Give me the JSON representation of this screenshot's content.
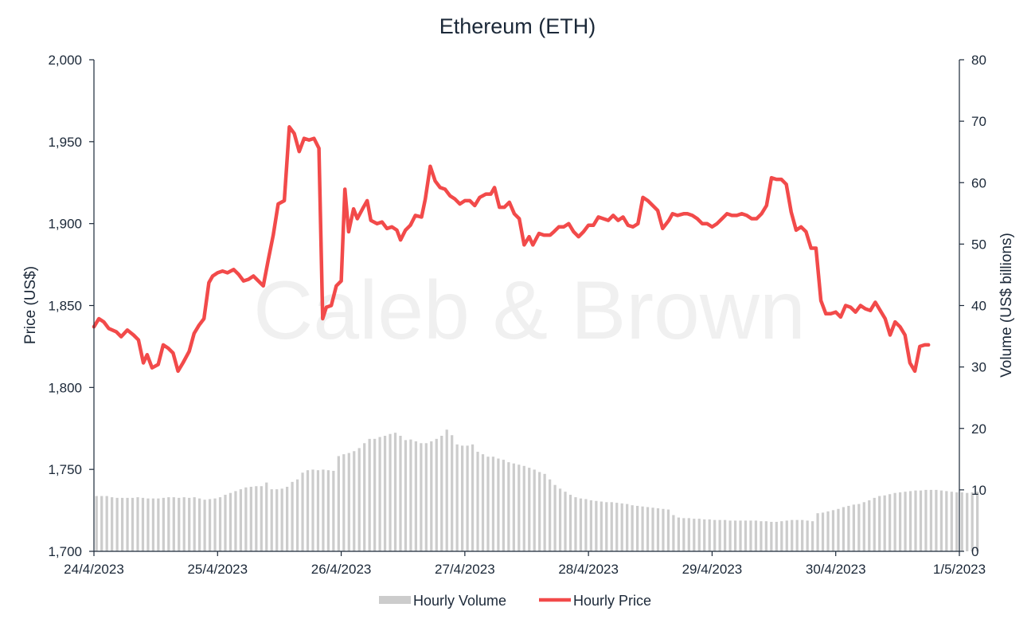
{
  "chart_data": {
    "type": "bar+line",
    "title": "Ethereum (ETH)",
    "watermark": "Caleb & Brown",
    "y_left": {
      "label": "Price (US$)",
      "range": [
        1700,
        2000
      ],
      "ticks": [
        "1,700",
        "1,750",
        "1,800",
        "1,850",
        "1,900",
        "1,950",
        "2,000"
      ],
      "tick_values": [
        1700,
        1750,
        1800,
        1850,
        1900,
        1950,
        2000
      ]
    },
    "y_right": {
      "label": "Volume (US$ billions)",
      "range": [
        0,
        80
      ],
      "ticks": [
        "0",
        "10",
        "20",
        "30",
        "40",
        "50",
        "60",
        "70",
        "80"
      ],
      "tick_values": [
        0,
        10,
        20,
        30,
        40,
        50,
        60,
        70,
        80
      ]
    },
    "x_axis": {
      "range_days": 7,
      "ticks": [
        "24/4/2023",
        "25/4/2023",
        "26/4/2023",
        "27/4/2023",
        "28/4/2023",
        "29/4/2023",
        "30/4/2023",
        "1/5/2023"
      ]
    },
    "grid": false,
    "legend": {
      "position": "bottom",
      "items": [
        {
          "label": "Hourly Volume",
          "color": "#cccccc",
          "kind": "bar"
        },
        {
          "label": "Hourly Price",
          "color": "#f24a4a",
          "kind": "line"
        }
      ]
    },
    "colors": {
      "price": "#f24a4a",
      "volume": "#cccccc",
      "text": "#1b2838"
    },
    "series": [
      {
        "name": "Hourly Price",
        "axis": "left",
        "points": [
          [
            0.0,
            1837
          ],
          [
            0.04,
            1842
          ],
          [
            0.08,
            1840
          ],
          [
            0.12,
            1836
          ],
          [
            0.18,
            1834
          ],
          [
            0.22,
            1831
          ],
          [
            0.27,
            1835
          ],
          [
            0.32,
            1832
          ],
          [
            0.36,
            1829
          ],
          [
            0.4,
            1815
          ],
          [
            0.43,
            1820
          ],
          [
            0.47,
            1812
          ],
          [
            0.52,
            1814
          ],
          [
            0.56,
            1826
          ],
          [
            0.6,
            1824
          ],
          [
            0.64,
            1821
          ],
          [
            0.68,
            1810
          ],
          [
            0.72,
            1815
          ],
          [
            0.77,
            1822
          ],
          [
            0.81,
            1833
          ],
          [
            0.85,
            1838
          ],
          [
            0.89,
            1842
          ],
          [
            0.93,
            1864
          ],
          [
            0.96,
            1868
          ],
          [
            1.0,
            1870
          ],
          [
            1.04,
            1871
          ],
          [
            1.08,
            1870
          ],
          [
            1.13,
            1872
          ],
          [
            1.17,
            1869
          ],
          [
            1.21,
            1865
          ],
          [
            1.25,
            1866
          ],
          [
            1.29,
            1868
          ],
          [
            1.33,
            1865
          ],
          [
            1.37,
            1862
          ],
          [
            1.41,
            1878
          ],
          [
            1.45,
            1893
          ],
          [
            1.49,
            1912
          ],
          [
            1.54,
            1914
          ],
          [
            1.58,
            1959
          ],
          [
            1.62,
            1955
          ],
          [
            1.66,
            1944
          ],
          [
            1.7,
            1952
          ],
          [
            1.74,
            1951
          ],
          [
            1.78,
            1952
          ],
          [
            1.82,
            1946
          ],
          [
            1.85,
            1842
          ],
          [
            1.88,
            1849
          ],
          [
            1.92,
            1850
          ],
          [
            1.96,
            1862
          ],
          [
            2.0,
            1865
          ],
          [
            2.03,
            1921
          ],
          [
            2.06,
            1895
          ],
          [
            2.1,
            1909
          ],
          [
            2.13,
            1903
          ],
          [
            2.18,
            1910
          ],
          [
            2.21,
            1914
          ],
          [
            2.24,
            1902
          ],
          [
            2.29,
            1900
          ],
          [
            2.33,
            1901
          ],
          [
            2.37,
            1897
          ],
          [
            2.41,
            1898
          ],
          [
            2.45,
            1896
          ],
          [
            2.48,
            1890
          ],
          [
            2.52,
            1896
          ],
          [
            2.56,
            1899
          ],
          [
            2.6,
            1905
          ],
          [
            2.65,
            1904
          ],
          [
            2.68,
            1915
          ],
          [
            2.72,
            1935
          ],
          [
            2.76,
            1926
          ],
          [
            2.8,
            1922
          ],
          [
            2.84,
            1921
          ],
          [
            2.88,
            1917
          ],
          [
            2.92,
            1915
          ],
          [
            2.96,
            1912
          ],
          [
            3.0,
            1914
          ],
          [
            3.04,
            1914
          ],
          [
            3.08,
            1911
          ],
          [
            3.12,
            1916
          ],
          [
            3.17,
            1918
          ],
          [
            3.21,
            1918
          ],
          [
            3.24,
            1922
          ],
          [
            3.28,
            1910
          ],
          [
            3.32,
            1910
          ],
          [
            3.36,
            1913
          ],
          [
            3.4,
            1906
          ],
          [
            3.44,
            1903
          ],
          [
            3.48,
            1887
          ],
          [
            3.52,
            1892
          ],
          [
            3.55,
            1887
          ],
          [
            3.6,
            1894
          ],
          [
            3.64,
            1893
          ],
          [
            3.69,
            1893
          ],
          [
            3.72,
            1895
          ],
          [
            3.76,
            1898
          ],
          [
            3.8,
            1898
          ],
          [
            3.84,
            1900
          ],
          [
            3.88,
            1895
          ],
          [
            3.92,
            1892
          ],
          [
            3.96,
            1895
          ],
          [
            4.0,
            1899
          ],
          [
            4.04,
            1899
          ],
          [
            4.08,
            1904
          ],
          [
            4.12,
            1903
          ],
          [
            4.16,
            1902
          ],
          [
            4.2,
            1905
          ],
          [
            4.24,
            1902
          ],
          [
            4.28,
            1904
          ],
          [
            4.32,
            1899
          ],
          [
            4.36,
            1898
          ],
          [
            4.4,
            1900
          ],
          [
            4.44,
            1916
          ],
          [
            4.48,
            1914
          ],
          [
            4.52,
            1911
          ],
          [
            4.56,
            1908
          ],
          [
            4.6,
            1897
          ],
          [
            4.65,
            1902
          ],
          [
            4.68,
            1906
          ],
          [
            4.72,
            1905
          ],
          [
            4.77,
            1906
          ],
          [
            4.8,
            1906
          ],
          [
            4.84,
            1905
          ],
          [
            4.88,
            1903
          ],
          [
            4.92,
            1900
          ],
          [
            4.96,
            1900
          ],
          [
            5.0,
            1898
          ],
          [
            5.04,
            1900
          ],
          [
            5.08,
            1903
          ],
          [
            5.12,
            1906
          ],
          [
            5.16,
            1905
          ],
          [
            5.2,
            1905
          ],
          [
            5.24,
            1906
          ],
          [
            5.28,
            1905
          ],
          [
            5.32,
            1903
          ],
          [
            5.36,
            1903
          ],
          [
            5.4,
            1906
          ],
          [
            5.44,
            1911
          ],
          [
            5.48,
            1928
          ],
          [
            5.52,
            1927
          ],
          [
            5.56,
            1927
          ],
          [
            5.6,
            1924
          ],
          [
            5.64,
            1907
          ],
          [
            5.68,
            1896
          ],
          [
            5.72,
            1898
          ],
          [
            5.76,
            1895
          ],
          [
            5.8,
            1885
          ],
          [
            5.84,
            1885
          ],
          [
            5.88,
            1853
          ],
          [
            5.92,
            1845
          ],
          [
            5.96,
            1845
          ],
          [
            6.0,
            1846
          ],
          [
            6.04,
            1843
          ],
          [
            6.08,
            1850
          ],
          [
            6.12,
            1849
          ],
          [
            6.16,
            1846
          ],
          [
            6.2,
            1850
          ],
          [
            6.24,
            1848
          ],
          [
            6.28,
            1847
          ],
          [
            6.32,
            1852
          ],
          [
            6.36,
            1847
          ],
          [
            6.4,
            1842
          ],
          [
            6.44,
            1832
          ],
          [
            6.48,
            1840
          ],
          [
            6.52,
            1837
          ],
          [
            6.56,
            1832
          ],
          [
            6.6,
            1815
          ],
          [
            6.64,
            1810
          ],
          [
            6.68,
            1825
          ],
          [
            6.72,
            1826
          ],
          [
            6.75,
            1826
          ]
        ]
      },
      {
        "name": "Hourly Volume",
        "axis": "right",
        "hours": 168,
        "values": [
          9,
          9,
          9,
          8.8,
          8.7,
          8.7,
          8.7,
          8.7,
          8.8,
          8.7,
          8.6,
          8.6,
          8.6,
          8.7,
          8.8,
          8.8,
          8.7,
          8.8,
          8.7,
          8.8,
          8.6,
          8.4,
          8.5,
          8.6,
          8.8,
          9.2,
          9.5,
          9.8,
          10.1,
          10.4,
          10.5,
          10.6,
          10.6,
          11.2,
          10.1,
          10.1,
          10.2,
          10.5,
          11.3,
          11.7,
          12.8,
          13.2,
          13.3,
          13.2,
          13.3,
          13.2,
          13.1,
          15.5,
          15.8,
          16,
          16.3,
          16.8,
          17.6,
          18.3,
          18.3,
          18.6,
          18.8,
          19.1,
          19.3,
          18.8,
          18.1,
          18.2,
          17.9,
          17.6,
          17.6,
          17.9,
          18.3,
          18.8,
          19.8,
          18.9,
          17.4,
          17.2,
          17.2,
          17.4,
          16.2,
          15.8,
          15.4,
          15.4,
          15.1,
          14.9,
          14.5,
          14.3,
          14.1,
          13.9,
          13.6,
          13.3,
          12.9,
          12.6,
          11.7,
          10.8,
          10.2,
          9.7,
          9.2,
          8.8,
          8.6,
          8.5,
          8.3,
          8.2,
          8.1,
          8,
          8,
          7.9,
          7.8,
          7.7,
          7.5,
          7.4,
          7.3,
          7.2,
          7.1,
          7,
          6.9,
          6.8,
          5.9,
          5.5,
          5.4,
          5.4,
          5.3,
          5.3,
          5.2,
          5.2,
          5.1,
          5.1,
          5.1,
          5,
          5,
          5,
          5,
          5,
          5,
          4.9,
          4.9,
          4.8,
          4.8,
          4.9,
          5,
          5.1,
          5.1,
          5.1,
          5,
          4.9,
          6.2,
          6.3,
          6.5,
          6.7,
          6.9,
          7.2,
          7.4,
          7.6,
          7.7,
          8,
          8.3,
          8.7,
          9,
          9.1,
          9.3,
          9.5,
          9.6,
          9.7,
          9.8,
          9.9,
          9.9,
          10,
          10,
          10,
          9.9,
          9.8,
          9.7,
          9.6,
          9.6,
          9.5,
          9.6,
          9.7
        ]
      }
    ]
  }
}
